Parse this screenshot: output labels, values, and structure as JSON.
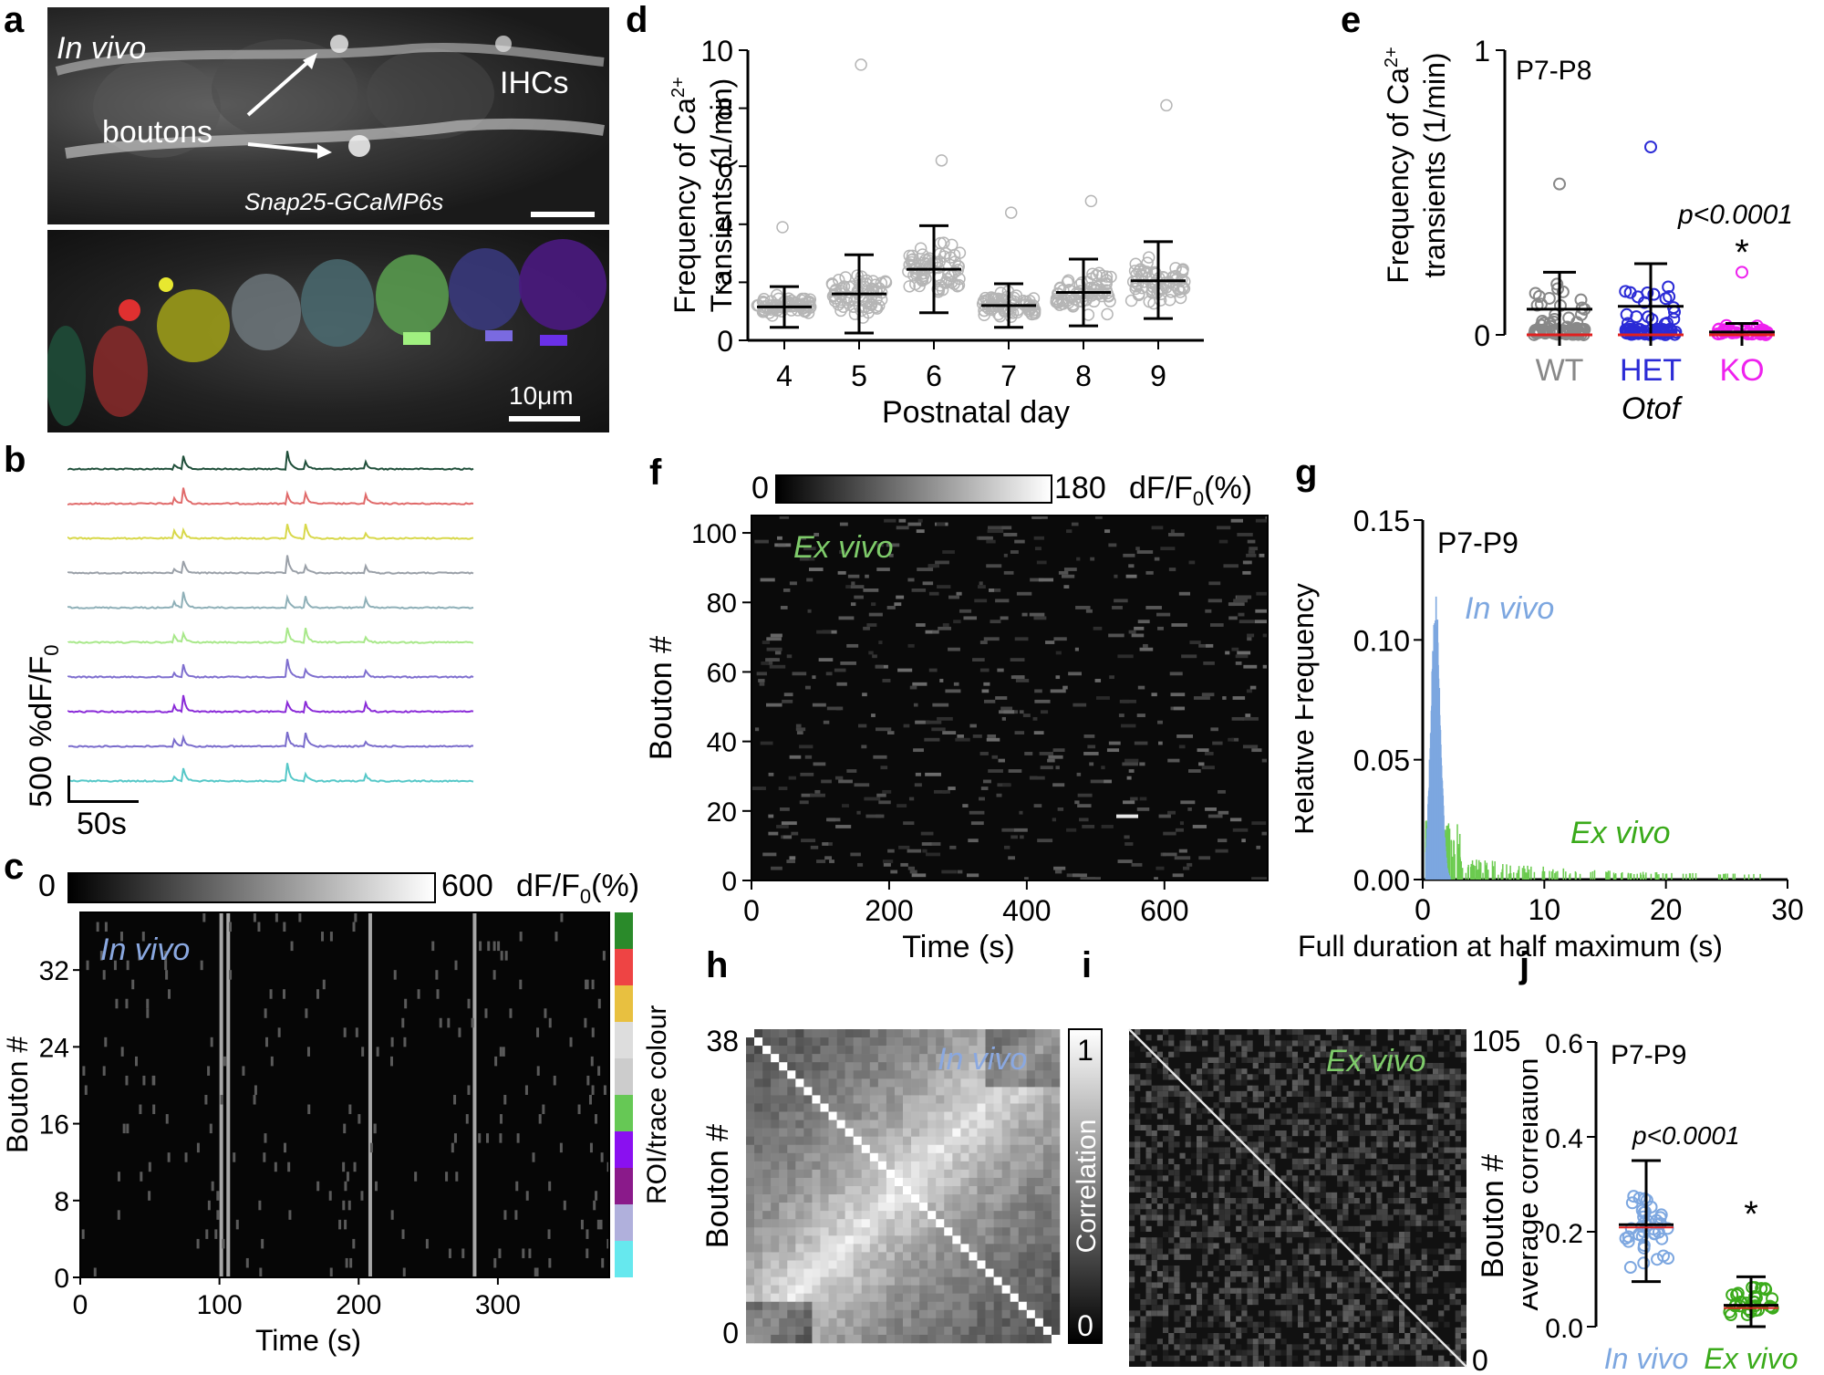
{
  "panel_letters": [
    "a",
    "b",
    "c",
    "d",
    "e",
    "f",
    "g",
    "h",
    "i",
    "j"
  ],
  "panel_a": {
    "top_label": "In vivo",
    "structure_label": "IHCs",
    "arrow_label": "boutons",
    "reporter_label": "Snap25-GCaMP6s",
    "scale_label": "10μm"
  },
  "panel_b": {
    "scale_y_label": "500 %dF/F",
    "scale_y_sub": "0",
    "scale_x_label": "50s",
    "trace_colors": [
      "#1f4f3a",
      "#e06a6a",
      "#d8d84a",
      "#9aa0a8",
      "#8fb0b8",
      "#a8e88a",
      "#7f6fcf",
      "#8a2bd8",
      "#7a6ccc",
      "#56c8c8"
    ]
  },
  "panel_c": {
    "colorbar_min": "0",
    "colorbar_max": "600",
    "colorbar_label": "dF/F",
    "colorbar_label_sub": "0",
    "colorbar_label_unit": "(%)",
    "inset_label": "In vivo",
    "xlabel": "Time (s)",
    "ylabel": "Bouton #",
    "x_ticks": [
      "0",
      "100",
      "200",
      "300"
    ],
    "y_ticks": [
      "0",
      "8",
      "16",
      "24",
      "32"
    ],
    "roi_bar_label": "ROI/trace colour",
    "roi_colors": [
      "#66e8ee",
      "#b0b0dc",
      "#8a1a8a",
      "#8a10f0",
      "#66c855",
      "#cccccc",
      "#dddddd",
      "#e8c040",
      "#ee4444",
      "#2a8a2a"
    ]
  },
  "chart_data": [
    {
      "panel": "d",
      "type": "scatter",
      "categories": [
        "4",
        "5",
        "6",
        "7",
        "8",
        "9"
      ],
      "xlabel": "Postnatal day",
      "ylabel_line1": "Frequency of Ca",
      "ylabel_sup": "2+",
      "ylabel_line2": "Transients (1/min)",
      "y_ticks": [
        "0",
        "2",
        "4",
        "6",
        "8",
        "10"
      ],
      "ylim": [
        0,
        10
      ],
      "mean": [
        1.15,
        1.6,
        2.45,
        1.2,
        1.65,
        2.05
      ],
      "sd_low": [
        0.45,
        0.25,
        0.95,
        0.45,
        0.5,
        0.75
      ],
      "sd_high": [
        1.85,
        2.95,
        3.95,
        1.95,
        2.8,
        3.4
      ],
      "max_points": [
        3.9,
        9.5,
        6.2,
        4.4,
        4.8,
        8.1
      ]
    },
    {
      "panel": "e",
      "type": "scatter",
      "categories": [
        "WT",
        "HET",
        "KO"
      ],
      "category_colors": [
        "#888888",
        "#2b2bd6",
        "#ee22ee"
      ],
      "genotype_label": "Otof",
      "xlabel": "",
      "ylabel_line1": "Frequency of Ca",
      "ylabel_sup": "2+",
      "ylabel_line2": "transients (1/min)",
      "y_ticks": [
        "0",
        "1"
      ],
      "ylim": [
        0,
        1
      ],
      "age_label": "P7-P8",
      "p_value_label": "p<0.0001",
      "sig_marker": "*",
      "mean": [
        0.09,
        0.1,
        0.01
      ],
      "sd_high": [
        0.22,
        0.25,
        0.04
      ],
      "max_points": [
        0.53,
        0.66,
        0.22
      ]
    },
    {
      "panel": "g",
      "type": "histogram",
      "xlabel": "Full duration at half maximum (s)",
      "ylabel": "Relative Frequency",
      "x_ticks": [
        "0",
        "10",
        "20",
        "30"
      ],
      "y_ticks": [
        "0.00",
        "0.05",
        "0.10",
        "0.15"
      ],
      "xlim": [
        0,
        30
      ],
      "ylim": [
        0,
        0.15
      ],
      "age_label": "P7-P9",
      "series": [
        {
          "name": "In vivo",
          "color": "#7da7e0",
          "peak_x": 1.0,
          "peak_y": 0.12
        },
        {
          "name": "Ex vivo",
          "color": "#6bcb4f",
          "peak_x": 1.0,
          "peak_y": 0.025
        }
      ]
    },
    {
      "panel": "j",
      "type": "scatter",
      "categories": [
        "In vivo",
        "Ex vivo"
      ],
      "category_colors": [
        "#7da7e0",
        "#3aaa1a"
      ],
      "ylabel": "Average correlation",
      "y_ticks": [
        "0.0",
        "0.2",
        "0.4",
        "0.6"
      ],
      "ylim": [
        0,
        0.6
      ],
      "age_label": "P7-P9",
      "p_value_label": "p<0.0001",
      "sig_marker": "*",
      "mean": [
        0.215,
        0.045
      ],
      "sd_low": [
        0.095,
        0.0
      ],
      "sd_high": [
        0.35,
        0.105
      ]
    }
  ],
  "panel_f": {
    "colorbar_min": "0",
    "colorbar_max": "180",
    "colorbar_label": "dF/F",
    "colorbar_label_sub": "0",
    "colorbar_label_unit": "(%)",
    "inset_label": "Ex vivo",
    "xlabel": "Time (s)",
    "ylabel": "Bouton #",
    "x_ticks": [
      "0",
      "200",
      "400",
      "600"
    ],
    "y_ticks": [
      "0",
      "20",
      "40",
      "60",
      "80",
      "100"
    ]
  },
  "panel_h": {
    "inset_label": "In vivo",
    "ylabel": "Bouton #",
    "y_top": "38",
    "y_bottom": "0",
    "colorbar_label": "Correlation",
    "colorbar_top": "1",
    "colorbar_bottom": "0"
  },
  "panel_i": {
    "inset_label": "Ex vivo",
    "ylabel": "Bouton #",
    "y_top": "105",
    "y_bottom": "0"
  }
}
